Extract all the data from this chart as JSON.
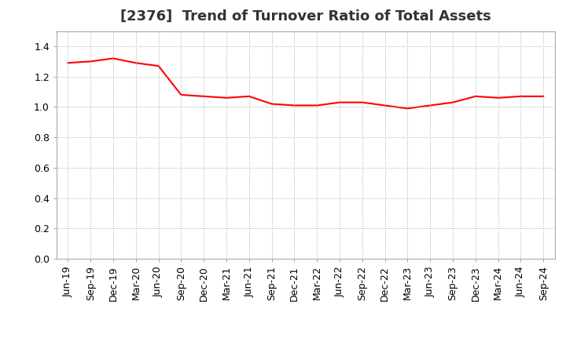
{
  "title": "[2376]  Trend of Turnover Ratio of Total Assets",
  "x_labels": [
    "Jun-19",
    "Sep-19",
    "Dec-19",
    "Mar-20",
    "Jun-20",
    "Sep-20",
    "Dec-20",
    "Mar-21",
    "Jun-21",
    "Sep-21",
    "Dec-21",
    "Mar-22",
    "Jun-22",
    "Sep-22",
    "Dec-22",
    "Mar-23",
    "Jun-23",
    "Sep-23",
    "Dec-23",
    "Mar-24",
    "Jun-24",
    "Sep-24"
  ],
  "y_values": [
    1.29,
    1.3,
    1.32,
    1.29,
    1.27,
    1.08,
    1.07,
    1.06,
    1.07,
    1.02,
    1.01,
    1.01,
    1.03,
    1.03,
    1.01,
    0.99,
    1.01,
    1.03,
    1.07,
    1.06,
    1.07,
    1.07
  ],
  "line_color": "#ff0000",
  "line_width": 1.5,
  "ylim": [
    0.0,
    1.5
  ],
  "yticks": [
    0.0,
    0.2,
    0.4,
    0.6,
    0.8,
    1.0,
    1.2,
    1.4
  ],
  "grid_color": "#aaaaaa",
  "background_color": "#ffffff",
  "title_fontsize": 13,
  "tick_fontsize": 9
}
